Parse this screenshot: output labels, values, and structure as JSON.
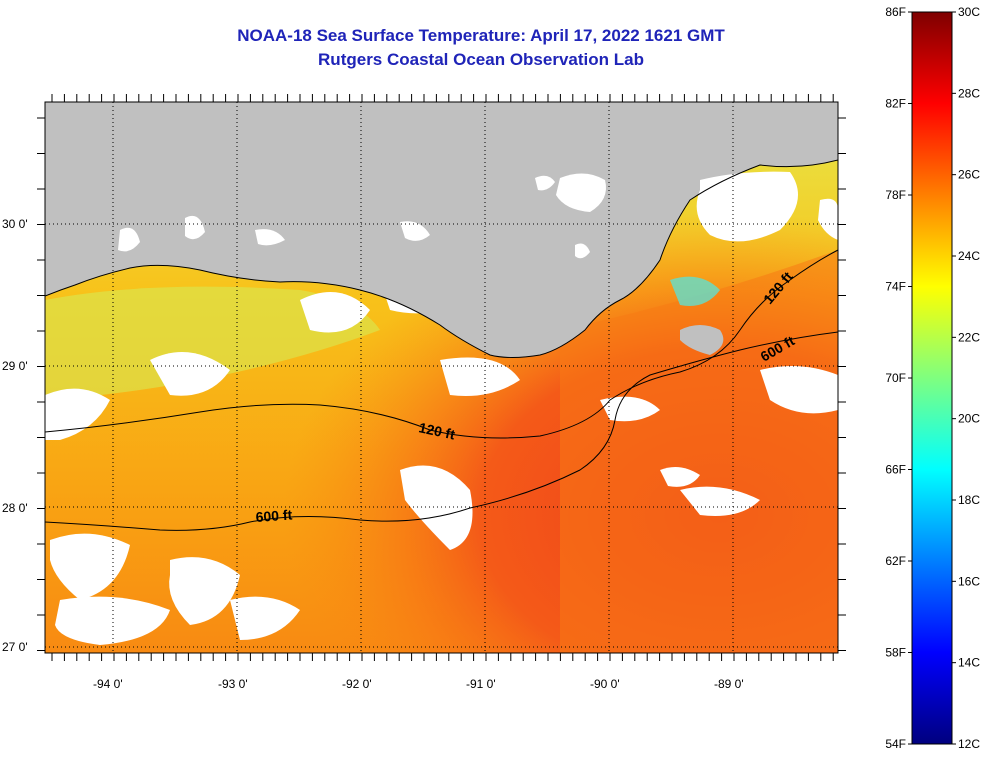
{
  "title": "NOAA-18 Sea Surface Temperature:  April 17, 2022 1621 GMT",
  "subtitle": "Rutgers Coastal Ocean Observation Lab",
  "map": {
    "lat_labels": [
      "30 0'",
      "29 0'",
      "28 0'",
      "27 0'"
    ],
    "lon_labels": [
      "-94 0'",
      "-93 0'",
      "-92 0'",
      "-91 0'",
      "-90 0'",
      "-89 0'"
    ],
    "contours": [
      {
        "label": "120 ft"
      },
      {
        "label": "600 ft"
      },
      {
        "label": "120 ft"
      },
      {
        "label": "600 ft"
      }
    ]
  },
  "colorbar": {
    "fahrenheit_labels": [
      "86F",
      "82F",
      "78F",
      "74F",
      "70F",
      "66F",
      "62F",
      "58F",
      "54F"
    ],
    "celsius_labels": [
      "30C",
      "28C",
      "26C",
      "24C",
      "22C",
      "20C",
      "18C",
      "16C",
      "14C",
      "12C"
    ],
    "colors": [
      "#00007f",
      "#0000ff",
      "#007fff",
      "#00ffff",
      "#7fff7f",
      "#ffff00",
      "#ff7f00",
      "#ff0000",
      "#7f0000"
    ]
  },
  "colors": {
    "title": "#1f24b8",
    "land": "#c0c0c0",
    "warm_water": "#ff9a10",
    "hot_water": "#f24a1a",
    "cool_water": "#ffd21a"
  }
}
